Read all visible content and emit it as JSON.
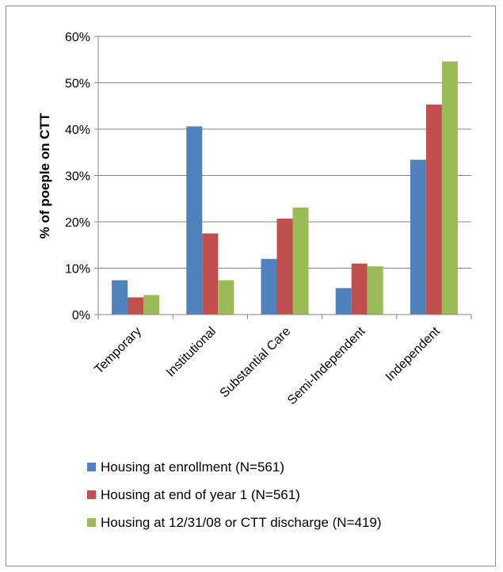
{
  "chart_data": {
    "type": "bar",
    "title": "",
    "xlabel": "",
    "ylabel": "% of poeple on CTT",
    "ylim": [
      0,
      60
    ],
    "yticks": [
      "0%",
      "10%",
      "20%",
      "30%",
      "40%",
      "50%",
      "60%"
    ],
    "grid": true,
    "legend_position": "bottom",
    "categories": [
      "Temporary",
      "Institutional",
      "Substantial Care",
      "Semi-Independent",
      "Independent"
    ],
    "series": [
      {
        "name": "Housing at enrollment (N=561)",
        "color": "#4f81bd",
        "values": [
          7.4,
          40.6,
          12.0,
          5.7,
          33.4
        ]
      },
      {
        "name": "Housing at end of year 1 (N=561)",
        "color": "#c0504d",
        "values": [
          3.7,
          17.5,
          20.7,
          11.0,
          45.3
        ]
      },
      {
        "name": "Housing at 12/31/08 or CTT discharge (N=419)",
        "color": "#9bbb59",
        "values": [
          4.2,
          7.4,
          23.1,
          10.4,
          54.6
        ]
      }
    ]
  }
}
